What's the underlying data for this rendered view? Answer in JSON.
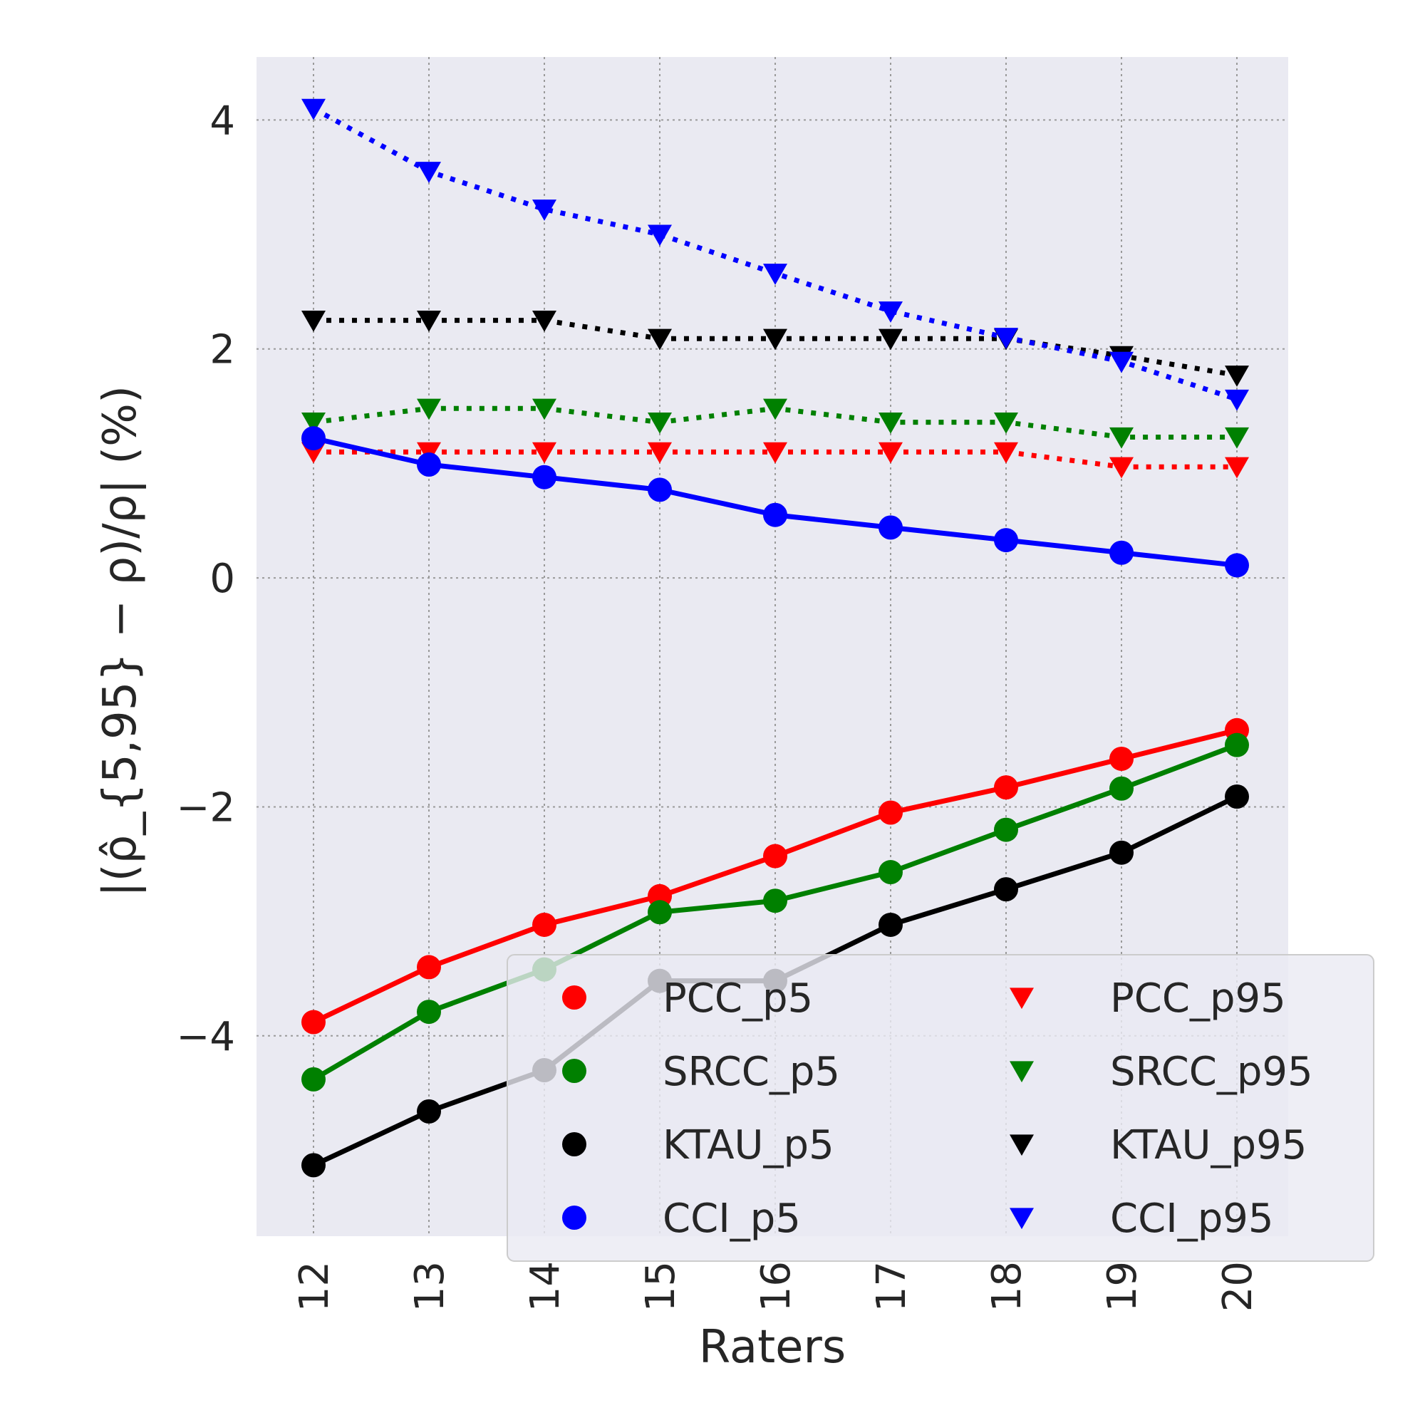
{
  "chart_data": {
    "type": "line",
    "title": "",
    "xlabel": "Raters",
    "ylabel": "|(ρ̂_{5,95} − ρ)/ρ| (%)",
    "x": [
      12,
      13,
      14,
      15,
      16,
      17,
      18,
      19,
      20
    ],
    "ylim": [
      -5.75,
      4.55
    ],
    "yticks": [
      -4,
      -2,
      0,
      2,
      4
    ],
    "ytick_labels": [
      "−4",
      "−2",
      "0",
      "2",
      "4"
    ],
    "grid": true,
    "legend_position": "lower-right",
    "series": [
      {
        "name": "PCC_p5",
        "color": "#ff0000",
        "marker": "circle",
        "linestyle": "solid",
        "values": [
          -3.88,
          -3.4,
          -3.03,
          -2.78,
          -2.43,
          -2.05,
          -1.83,
          -1.58,
          -1.33
        ]
      },
      {
        "name": "SRCC_p5",
        "color": "#008000",
        "marker": "circle",
        "linestyle": "solid",
        "values": [
          -4.38,
          -3.79,
          -3.42,
          -2.92,
          -2.82,
          -2.57,
          -2.2,
          -1.84,
          -1.46
        ]
      },
      {
        "name": "KTAU_p5",
        "color": "#000000",
        "marker": "circle",
        "linestyle": "solid",
        "values": [
          -5.13,
          -4.66,
          -4.3,
          -3.52,
          -3.52,
          -3.03,
          -2.72,
          -2.4,
          -1.91
        ]
      },
      {
        "name": "CCI_p5",
        "color": "#0000ff",
        "marker": "circle",
        "linestyle": "solid",
        "values": [
          1.22,
          0.99,
          0.88,
          0.77,
          0.55,
          0.44,
          0.33,
          0.22,
          0.11
        ]
      },
      {
        "name": "PCC_p95",
        "color": "#ff0000",
        "marker": "triangle",
        "linestyle": "dotted",
        "values": [
          1.1,
          1.1,
          1.1,
          1.1,
          1.1,
          1.1,
          1.1,
          0.97,
          0.97
        ]
      },
      {
        "name": "SRCC_p95",
        "color": "#008000",
        "marker": "triangle",
        "linestyle": "dotted",
        "values": [
          1.36,
          1.48,
          1.48,
          1.36,
          1.48,
          1.36,
          1.36,
          1.23,
          1.23
        ]
      },
      {
        "name": "KTAU_p95",
        "color": "#000000",
        "marker": "triangle",
        "linestyle": "dotted",
        "values": [
          2.25,
          2.25,
          2.25,
          2.09,
          2.09,
          2.09,
          2.09,
          1.94,
          1.77
        ]
      },
      {
        "name": "CCI_p95",
        "color": "#0000ff",
        "marker": "triangle",
        "linestyle": "dotted",
        "values": [
          4.1,
          3.55,
          3.22,
          3.0,
          2.66,
          2.33,
          2.1,
          1.89,
          1.56
        ]
      }
    ]
  }
}
